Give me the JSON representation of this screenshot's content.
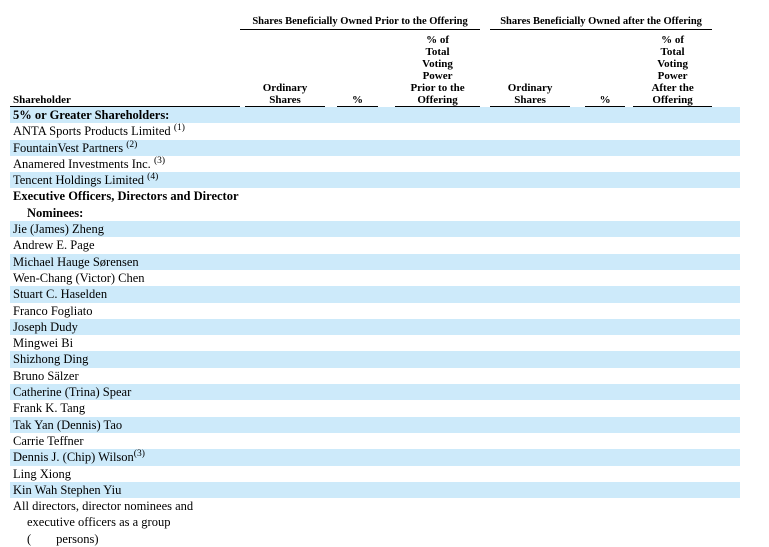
{
  "colors": {
    "page_background": "#FFFFFF",
    "row_highlight": "#CDEAFA",
    "text_color": "#000000",
    "rule_color": "#000000"
  },
  "table": {
    "shareholder_header": "Shareholder",
    "group_headers": {
      "prior": "Shares Beneficially Owned Prior to the Offering",
      "after": "Shares Beneficially Owned after the Offering"
    },
    "sub_headers": {
      "prior": {
        "ordinary_shares": "Ordinary\nShares",
        "percent": "%",
        "voting_power": "% of\nTotal\nVoting\nPower\nPrior to the\nOffering"
      },
      "after": {
        "ordinary_shares": "Ordinary\nShares",
        "percent": "%",
        "voting_power": "% of\nTotal\nVoting\nPower\nAfter the\nOffering"
      }
    },
    "rows": [
      {
        "label": "5% or Greater Shareholders:",
        "bold": true,
        "shaded": true
      },
      {
        "label": "ANTA Sports Products Limited",
        "sup": "(1)",
        "sup_gap": true,
        "shaded": false
      },
      {
        "label": "FountainVest Partners",
        "sup": "(2)",
        "sup_gap": true,
        "shaded": true
      },
      {
        "label": "Anamered Investments Inc.",
        "sup": "(3)",
        "sup_gap": true,
        "shaded": false
      },
      {
        "label": "Tencent Holdings Limited",
        "sup": "(4)",
        "sup_gap": true,
        "shaded": true
      },
      {
        "label": "Executive Officers, Directors and Director\nNominees:",
        "bold": true,
        "shaded": false
      },
      {
        "label": "Jie (James) Zheng",
        "shaded": true
      },
      {
        "label": "Andrew E. Page",
        "shaded": false
      },
      {
        "label": "Michael Hauge Sørensen",
        "shaded": true
      },
      {
        "label": "Wen-Chang (Victor) Chen",
        "shaded": false
      },
      {
        "label": "Stuart C. Haselden",
        "shaded": true
      },
      {
        "label": "Franco Fogliato",
        "shaded": false
      },
      {
        "label": "Joseph Dudy",
        "shaded": true
      },
      {
        "label": "Mingwei Bi",
        "shaded": false
      },
      {
        "label": "Shizhong Ding",
        "shaded": true
      },
      {
        "label": "Bruno Sälzer",
        "shaded": false
      },
      {
        "label": "Catherine (Trina) Spear",
        "shaded": true
      },
      {
        "label": "Frank K. Tang",
        "shaded": false
      },
      {
        "label": "Tak Yan (Dennis) Tao",
        "shaded": true
      },
      {
        "label": "Carrie Teffner",
        "shaded": false
      },
      {
        "label": "Dennis J. (Chip) Wilson",
        "sup": "(3)",
        "sup_gap": false,
        "shaded": true
      },
      {
        "label": "Ling Xiong",
        "shaded": false
      },
      {
        "label": "Kin Wah Stephen Yiu",
        "shaded": true
      },
      {
        "label": "All directors, director nominees and\nexecutive officers as a group\n(        persons)",
        "shaded": false
      }
    ]
  }
}
